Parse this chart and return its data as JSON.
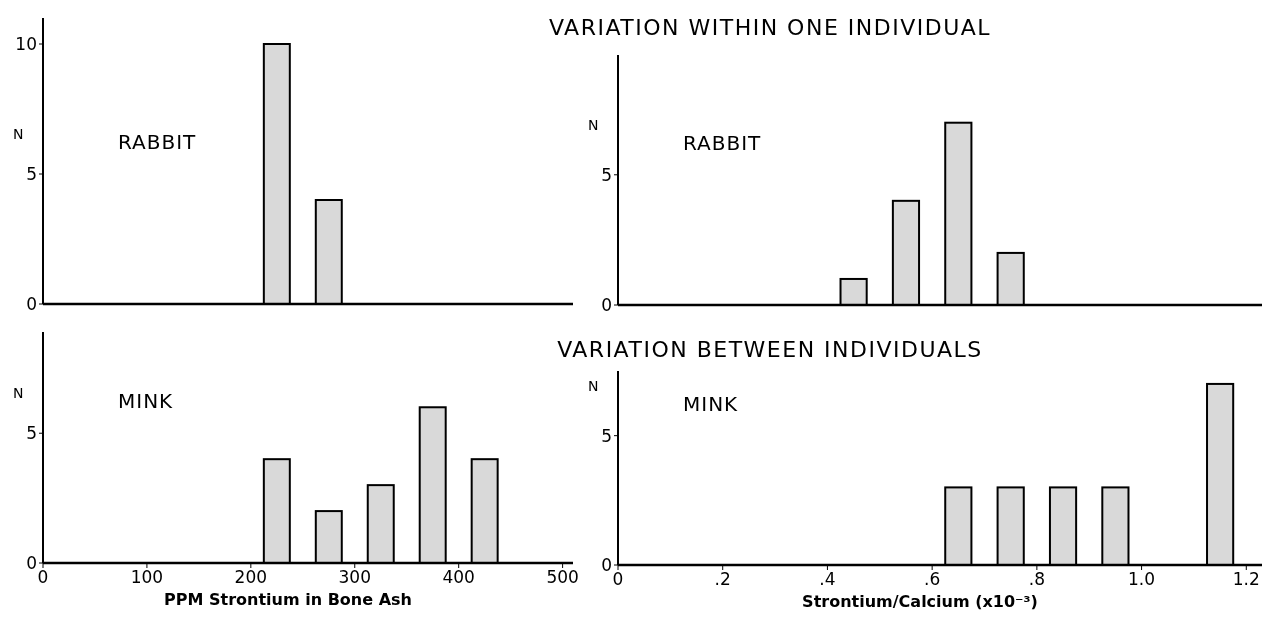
{
  "chart_data": [
    {
      "type": "bar",
      "title": "VARIATION WITHIN ONE INDIVIDUAL",
      "ylabel": "N",
      "annotations": [
        "RABBIT"
      ],
      "x": [
        225,
        275
      ],
      "values": [
        10,
        4
      ],
      "color": "#d9d9d9",
      "xlim": [
        0,
        510
      ],
      "xticks": [
        0,
        100,
        200,
        300,
        400,
        500
      ],
      "ylim": [
        0,
        11
      ],
      "yticks": [
        0,
        5,
        10
      ],
      "tick_labels": "y"
    },
    {
      "type": "bar",
      "ylabel": "N",
      "annotations": [
        "RABBIT"
      ],
      "x": [
        0.45,
        0.55,
        0.65,
        0.75
      ],
      "values": [
        1,
        4,
        7,
        2
      ],
      "color": "#d9d9d9",
      "xlim": [
        0,
        1.23
      ],
      "xticks": [
        0,
        0.2,
        0.4,
        0.6,
        0.8,
        1.0,
        1.2
      ],
      "ylim": [
        0,
        9.6
      ],
      "yticks": [
        0,
        5
      ],
      "tick_labels": "y"
    },
    {
      "type": "bar",
      "title": "VARIATION BETWEEN INDIVIDUALS",
      "xlabel": "PPM  Strontium in Bone Ash",
      "ylabel": "N",
      "annotations": [
        "MINK"
      ],
      "x": [
        225,
        275,
        325,
        375,
        425
      ],
      "values": [
        4,
        2,
        3,
        6,
        4
      ],
      "color": "#d9d9d9",
      "xlim": [
        0,
        510
      ],
      "xticks": [
        0,
        100,
        200,
        300,
        400,
        500
      ],
      "ylim": [
        0,
        8.9
      ],
      "yticks": [
        0,
        5
      ]
    },
    {
      "type": "bar",
      "xlabel": "Strontium/Calcium  (x10⁻³)",
      "ylabel": "N",
      "annotations": [
        "MINK"
      ],
      "x": [
        0.65,
        0.75,
        0.85,
        0.95,
        1.15
      ],
      "values": [
        3,
        3,
        3,
        3,
        7
      ],
      "color": "#d9d9d9",
      "xlim": [
        0,
        1.23
      ],
      "xticks": [
        0,
        {
          "value": 0.2,
          "label": ".2"
        },
        {
          "value": 0.4,
          "label": ".4"
        },
        {
          "value": 0.6,
          "label": ".6"
        },
        {
          "value": 0.8,
          "label": ".8"
        },
        {
          "value": 1.0,
          "label": "1.0"
        },
        {
          "value": 1.2,
          "label": "1.2"
        }
      ],
      "ylim": [
        0,
        7.5
      ],
      "yticks": [
        0,
        5
      ]
    }
  ]
}
